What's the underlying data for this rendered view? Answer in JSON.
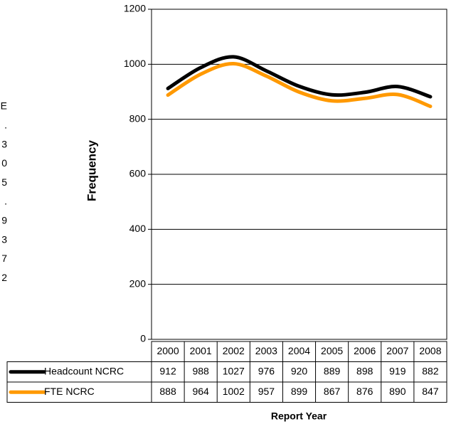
{
  "chart_data": {
    "type": "line",
    "y_label": "Frequency",
    "x_label": "Report Year",
    "categories": [
      "2000",
      "2001",
      "2002",
      "2003",
      "2004",
      "2005",
      "2006",
      "2007",
      "2008"
    ],
    "series": [
      {
        "name": "Headcount NCRC",
        "color": "#000000",
        "values": [
          912,
          988,
          1027,
          976,
          920,
          889,
          898,
          919,
          882
        ]
      },
      {
        "name": "FTE NCRC",
        "color": "#ff9900",
        "values": [
          888,
          964,
          1002,
          957,
          899,
          867,
          876,
          890,
          847
        ]
      }
    ],
    "ylim": [
      0,
      1200
    ],
    "yticks": [
      0,
      200,
      400,
      600,
      800,
      1000,
      1200
    ],
    "grid": true,
    "side_fragments": [
      "E",
      ".",
      "3",
      "0",
      "5",
      ".",
      "9",
      "3",
      "7",
      "2"
    ]
  }
}
